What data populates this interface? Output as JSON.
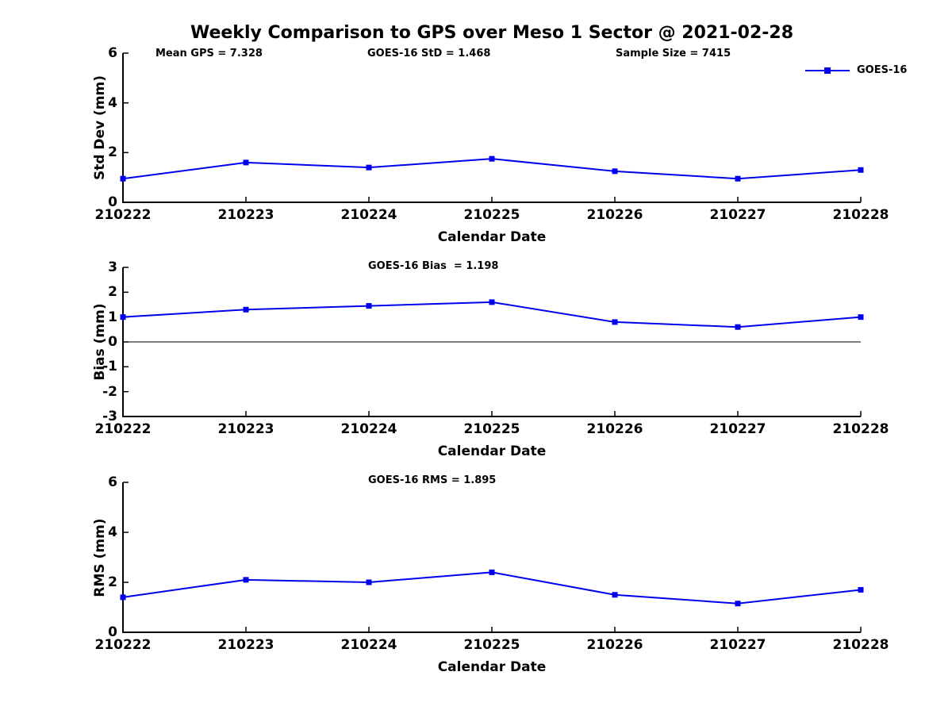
{
  "figure": {
    "title": "Weekly Comparison to GPS over Meso 1 Sector @ 2021-02-28",
    "legend": {
      "label": "GOES-16"
    },
    "colors": {
      "series": "#0000EE",
      "axis": "#000000",
      "zero_line": "#000000",
      "background": "#ffffff",
      "text": "#000000"
    }
  },
  "chart_data": [
    {
      "type": "line",
      "title": "",
      "annotations": [
        "Mean GPS = 7.328",
        "GOES-16 StD = 1.468",
        "Sample Size = 7415"
      ],
      "xlabel": "Calendar Date",
      "ylabel": "Std Dev (mm)",
      "categories": [
        "210222",
        "210223",
        "210224",
        "210225",
        "210226",
        "210227",
        "210228"
      ],
      "series": [
        {
          "name": "GOES-16",
          "values": [
            0.95,
            1.6,
            1.4,
            1.75,
            1.25,
            0.95,
            1.3
          ]
        }
      ],
      "ylim": [
        0,
        6
      ],
      "yticks": [
        0,
        2,
        4,
        6
      ],
      "grid": false,
      "zero_line": false,
      "legend_position": "top-right",
      "marker": "square"
    },
    {
      "type": "line",
      "title": "GOES-16 Bias  = 1.198",
      "annotations": [],
      "xlabel": "Calendar Date",
      "ylabel": "Bias (mm)",
      "categories": [
        "210222",
        "210223",
        "210224",
        "210225",
        "210226",
        "210227",
        "210228"
      ],
      "series": [
        {
          "name": "GOES-16",
          "values": [
            1.0,
            1.3,
            1.45,
            1.6,
            0.8,
            0.6,
            1.0
          ]
        }
      ],
      "ylim": [
        -3,
        3
      ],
      "yticks": [
        3,
        2,
        1,
        0,
        -1,
        -2,
        -3
      ],
      "grid": false,
      "zero_line": true,
      "legend_position": "none",
      "marker": "square"
    },
    {
      "type": "line",
      "title": "GOES-16 RMS = 1.895",
      "annotations": [],
      "xlabel": "Calendar Date",
      "ylabel": "RMS (mm)",
      "categories": [
        "210222",
        "210223",
        "210224",
        "210225",
        "210226",
        "210227",
        "210228"
      ],
      "series": [
        {
          "name": "GOES-16",
          "values": [
            1.4,
            2.1,
            2.0,
            2.4,
            1.5,
            1.15,
            1.7
          ]
        }
      ],
      "ylim": [
        0,
        6
      ],
      "yticks": [
        0,
        2,
        4,
        6
      ],
      "grid": false,
      "zero_line": false,
      "legend_position": "none",
      "marker": "square"
    }
  ]
}
